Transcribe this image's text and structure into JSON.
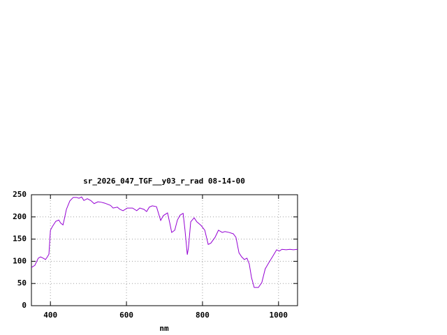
{
  "chart_data": {
    "type": "line",
    "title": "sr_2026_047_TGF__y03_r_rad 08-14-00",
    "x_label": "nm",
    "x": [
      350,
      359,
      368,
      374,
      381,
      387,
      392,
      396,
      400,
      405,
      414,
      422,
      427,
      433,
      436,
      442,
      451,
      460,
      469,
      475,
      482,
      488,
      497,
      506,
      515,
      525,
      534,
      543,
      558,
      565,
      576,
      583,
      591,
      602,
      616,
      627,
      635,
      646,
      653,
      660,
      668,
      679,
      690,
      697,
      708,
      714,
      719,
      727,
      734,
      741,
      749,
      754,
      760,
      763,
      769,
      778,
      785,
      796,
      806,
      815,
      822,
      833,
      842,
      852,
      859,
      870,
      881,
      888,
      896,
      903,
      910,
      917,
      923,
      929,
      936,
      947,
      956,
      965,
      976,
      984,
      995,
      1002,
      1009,
      1020,
      1030,
      1039,
      1050
    ],
    "values": [
      86,
      91,
      107,
      110,
      107,
      104,
      110,
      116,
      170,
      178,
      190,
      193,
      186,
      182,
      193,
      217,
      236,
      244,
      244,
      242,
      245,
      237,
      241,
      237,
      230,
      234,
      233,
      231,
      226,
      220,
      222,
      217,
      214,
      220,
      220,
      214,
      220,
      217,
      212,
      222,
      225,
      223,
      192,
      203,
      209,
      186,
      165,
      170,
      193,
      204,
      208,
      170,
      115,
      130,
      189,
      198,
      189,
      181,
      170,
      138,
      141,
      154,
      170,
      165,
      167,
      165,
      162,
      154,
      119,
      110,
      104,
      107,
      94,
      63,
      41,
      41,
      52,
      83,
      99,
      110,
      126,
      123,
      127,
      126,
      127,
      126,
      127
    ],
    "color": "#9400d3",
    "xlim": [
      350,
      1050
    ],
    "xticks": [
      400,
      600,
      800,
      1000
    ],
    "ylim": [
      0,
      250
    ],
    "yticks": [
      0,
      50,
      100,
      150,
      200,
      250
    ],
    "grid": true
  }
}
